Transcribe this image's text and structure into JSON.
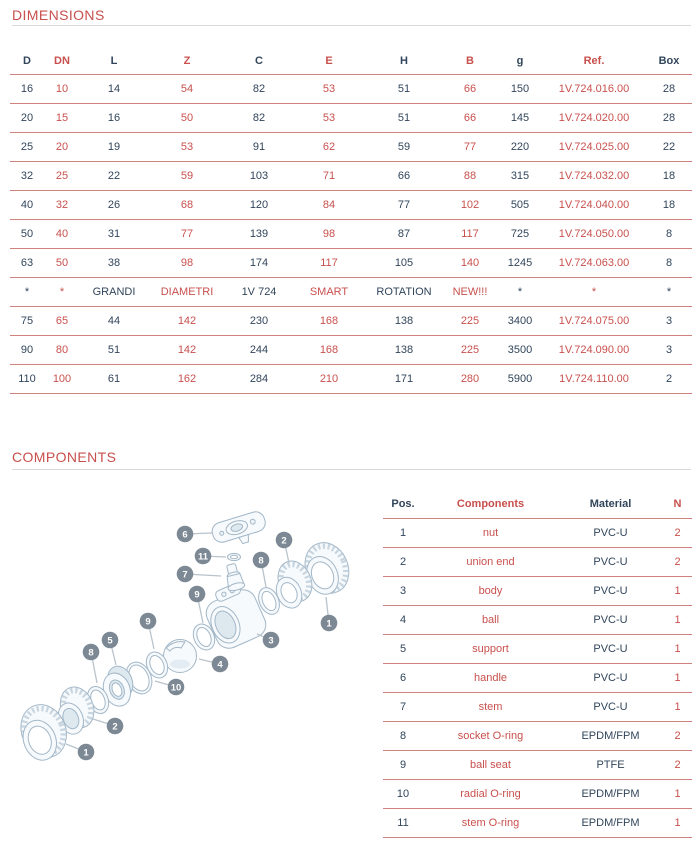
{
  "sections": {
    "dimensions": {
      "title": "DIMENSIONS"
    },
    "components": {
      "title": "COMPONENTS"
    }
  },
  "tables": {
    "dimensions": {
      "headers": [
        "D",
        "DN",
        "L",
        "Z",
        "C",
        "E",
        "H",
        "B",
        "g",
        "Ref.",
        "Box"
      ],
      "rows": [
        [
          "16",
          "10",
          "14",
          "54",
          "82",
          "53",
          "51",
          "66",
          "150",
          "1V.724.016.00",
          "28"
        ],
        [
          "20",
          "15",
          "16",
          "50",
          "82",
          "53",
          "51",
          "66",
          "145",
          "1V.724.020.00",
          "28"
        ],
        [
          "25",
          "20",
          "19",
          "53",
          "91",
          "62",
          "59",
          "77",
          "220",
          "1V.724.025.00",
          "22"
        ],
        [
          "32",
          "25",
          "22",
          "59",
          "103",
          "71",
          "66",
          "88",
          "315",
          "1V.724.032.00",
          "18"
        ],
        [
          "40",
          "32",
          "26",
          "68",
          "120",
          "84",
          "77",
          "102",
          "505",
          "1V.724.040.00",
          "18"
        ],
        [
          "50",
          "40",
          "31",
          "77",
          "139",
          "98",
          "87",
          "117",
          "725",
          "1V.724.050.00",
          "8"
        ],
        [
          "63",
          "50",
          "38",
          "98",
          "174",
          "117",
          "105",
          "140",
          "1245",
          "1V.724.063.00",
          "8"
        ],
        [
          "*",
          "*",
          "GRANDI",
          "DIAMETRI",
          "1V 724",
          "SMART",
          "ROTATION",
          "NEW!!!",
          "*",
          "*",
          "*"
        ],
        [
          "75",
          "65",
          "44",
          "142",
          "230",
          "168",
          "138",
          "225",
          "3400",
          "1V.724.075.00",
          "3"
        ],
        [
          "90",
          "80",
          "51",
          "142",
          "244",
          "168",
          "138",
          "225",
          "3500",
          "1V.724.090.00",
          "3"
        ],
        [
          "110",
          "100",
          "61",
          "162",
          "284",
          "210",
          "171",
          "280",
          "5900",
          "1V.724.110.00",
          "2"
        ]
      ]
    },
    "components": {
      "headers": [
        "Pos.",
        "Components",
        "Material",
        "N"
      ],
      "rows": [
        [
          "1",
          "nut",
          "PVC-U",
          "2"
        ],
        [
          "2",
          "union end",
          "PVC-U",
          "2"
        ],
        [
          "3",
          "body",
          "PVC-U",
          "1"
        ],
        [
          "4",
          "ball",
          "PVC-U",
          "1"
        ],
        [
          "5",
          "support",
          "PVC-U",
          "1"
        ],
        [
          "6",
          "handle",
          "PVC-U",
          "1"
        ],
        [
          "7",
          "stem",
          "PVC-U",
          "1"
        ],
        [
          "8",
          "socket O-ring",
          "EPDM/FPM",
          "2"
        ],
        [
          "9",
          "ball seat",
          "PTFE",
          "2"
        ],
        [
          "10",
          "radial O-ring",
          "EPDM/FPM",
          "1"
        ],
        [
          "11",
          "stem O-ring",
          "EPDM/FPM",
          "1"
        ]
      ]
    }
  },
  "diagram": {
    "callouts": [
      "6",
      "11",
      "7",
      "8",
      "2",
      "1",
      "9",
      "3",
      "4",
      "9",
      "10",
      "5",
      "8",
      "2",
      "1"
    ]
  },
  "colors": {
    "navy": "#31455b",
    "red": "#c8504d",
    "rule_red": "#cf837e",
    "title_rule": "#d9d9d9",
    "badge": "#7c8894"
  }
}
